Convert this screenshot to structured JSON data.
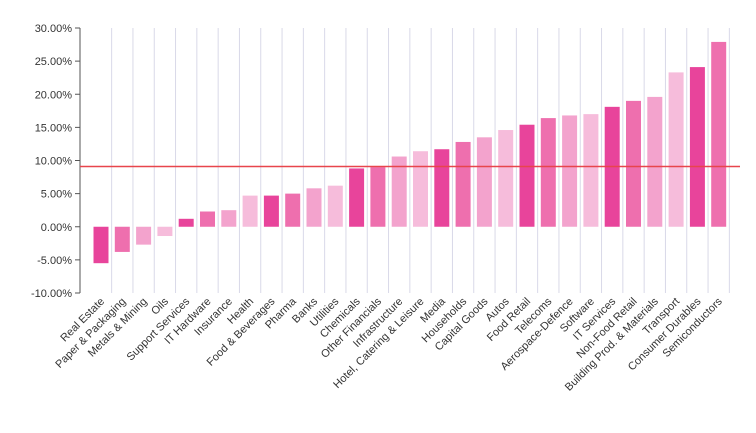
{
  "chart_data": {
    "type": "bar",
    "title": "",
    "xlabel": "",
    "ylabel": "",
    "ylim": [
      -10,
      30
    ],
    "y_ticks": [
      {
        "value": 30,
        "label": "30.00%"
      },
      {
        "value": 25,
        "label": "25.00%"
      },
      {
        "value": 20,
        "label": "20.00%"
      },
      {
        "value": 15,
        "label": "15.00%"
      },
      {
        "value": 10,
        "label": "10.00%"
      },
      {
        "value": 5,
        "label": "5.00%"
      },
      {
        "value": 0,
        "label": "0.00%"
      },
      {
        "value": -5,
        "label": "-5.00%"
      },
      {
        "value": -10,
        "label": "-10.00%"
      }
    ],
    "grid": "vertical",
    "reference_line": {
      "value": 9.1,
      "color": "#e8454c"
    },
    "categories": [
      "Real Estate",
      "Paper & Packaging",
      "Metals & Mining",
      "Oils",
      "Support Services",
      "IT Hardware",
      "Insurance",
      "Health",
      "Food & Beverages",
      "Pharma",
      "Banks",
      "Utilities",
      "Chemicals",
      "Other Financials",
      "Infrastructure",
      "Hotel, Catering & Leisure",
      "Media",
      "Households",
      "Capital Goods",
      "Autos",
      "Food Retail",
      "Telecoms",
      "Aerospace-Defence",
      "Software",
      "IT Services",
      "Non-Food Retail",
      "Building Prod. & Materials",
      "Transport",
      "Consumer Durables",
      "Semiconductors"
    ],
    "values": [
      -5.5,
      -3.8,
      -2.7,
      -1.4,
      1.2,
      2.3,
      2.5,
      4.7,
      4.7,
      5.0,
      5.8,
      6.2,
      8.8,
      9.0,
      10.6,
      11.4,
      11.7,
      12.8,
      13.5,
      14.6,
      15.4,
      16.4,
      16.8,
      17.0,
      18.1,
      19.0,
      19.6,
      23.3,
      24.1,
      27.9
    ],
    "colors": [
      "#e8449b",
      "#ee6fae",
      "#f3a3cd",
      "#f6bcdb",
      "#e8449b",
      "#ee6fae",
      "#f3a3cd",
      "#f6bcdb",
      "#e8449b",
      "#ee6fae",
      "#f3a3cd",
      "#f6bcdb",
      "#e8449b",
      "#ee6fae",
      "#f3a3cd",
      "#f6bcdb",
      "#e8449b",
      "#ee6fae",
      "#f3a3cd",
      "#f6bcdb",
      "#e8449b",
      "#ee6fae",
      "#f3a3cd",
      "#f6bcdb",
      "#e8449b",
      "#ee6fae",
      "#f3a3cd",
      "#f6bcdb",
      "#e8449b",
      "#ee6fae"
    ]
  }
}
